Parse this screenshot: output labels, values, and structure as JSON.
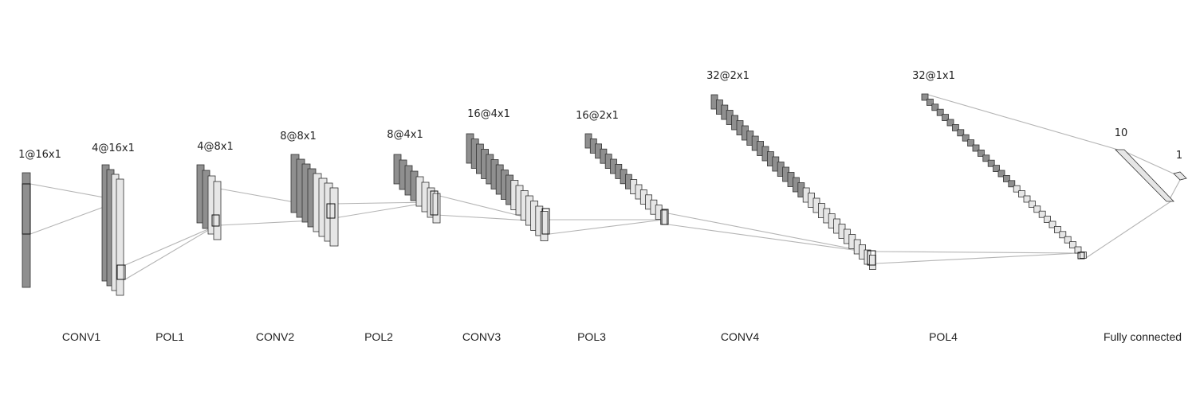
{
  "dimension_labels": {
    "input": "1@16x1",
    "conv1": "4@16x1",
    "pol1": "4@8x1",
    "conv2": "8@8x1",
    "pol2": "8@4x1",
    "conv3": "16@4x1",
    "pol3": "16@2x1",
    "conv4": "32@2x1",
    "pol4": "32@1x1",
    "fc1": "10",
    "fc2": "1"
  },
  "layer_labels": {
    "conv1": "CONV1",
    "pol1": "POL1",
    "conv2": "CONV2",
    "pol2": "POL2",
    "conv3": "CONV3",
    "pol3": "POL3",
    "conv4": "CONV4",
    "pol4": "POL4",
    "fc": "Fully connected"
  },
  "colors": {
    "map_dark": "#8f8f8f",
    "map_light": "#e6e6e6",
    "outline": "#333333",
    "connector": "#b4b4b4"
  }
}
